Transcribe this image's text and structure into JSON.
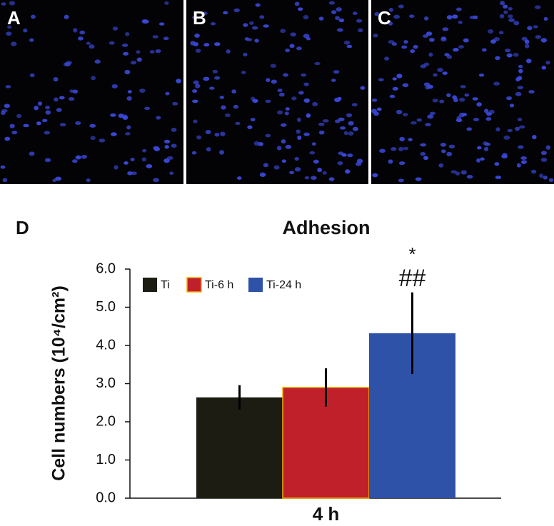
{
  "panels": [
    "A",
    "B",
    "C"
  ],
  "chart_data": {
    "type": "bar",
    "panel": "D",
    "title": "Adhesion",
    "ylabel": "Cell numbers (10⁴/cm²)",
    "categories": [
      "4 h"
    ],
    "series": [
      {
        "name": "Ti",
        "color": "#1c1c12",
        "values": [
          2.64
        ],
        "errors": [
          0.32
        ]
      },
      {
        "name": "Ti-6 h",
        "color": "#c0202a",
        "values": [
          2.9
        ],
        "errors": [
          0.5
        ]
      },
      {
        "name": "Ti-24 h",
        "color": "#2e52a8",
        "values": [
          4.32
        ],
        "errors": [
          1.07
        ]
      }
    ],
    "ylim": [
      0,
      6
    ],
    "yticks": [
      {
        "value": 0,
        "label": "0.0"
      },
      {
        "value": 1,
        "label": "1.0"
      },
      {
        "value": 2,
        "label": "2.0"
      },
      {
        "value": 3,
        "label": "3.0"
      },
      {
        "value": 4,
        "label": "4.0"
      },
      {
        "value": 5,
        "label": "5.0"
      },
      {
        "value": 6,
        "label": "6.0"
      }
    ],
    "annotations": [
      "*",
      "##"
    ],
    "legend": "top-left"
  }
}
